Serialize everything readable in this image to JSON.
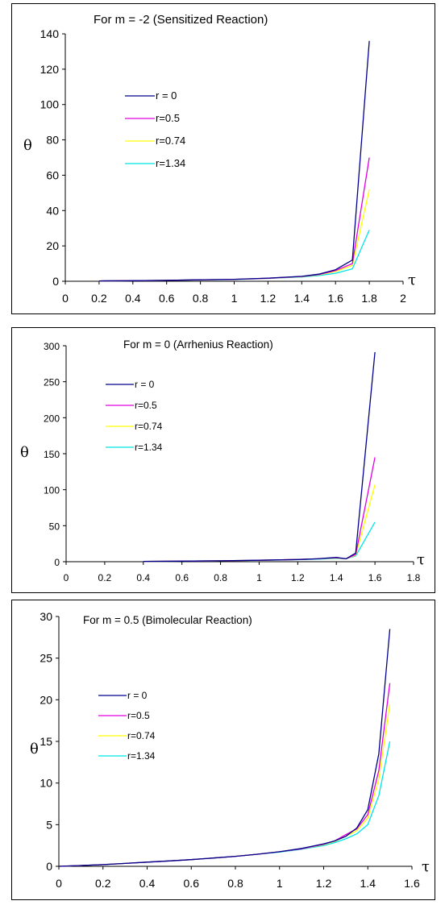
{
  "chart_data": [
    {
      "type": "line",
      "title": "For m = -2 (Sensitized Reaction)",
      "xlabel": "τ",
      "ylabel": "θ",
      "xlim": [
        0,
        2
      ],
      "ylim": [
        0,
        140
      ],
      "xticks": [
        "0",
        "0.2",
        "0.4",
        "0.6",
        "0.8",
        "1",
        "1.2",
        "1.4",
        "1.6",
        "1.8",
        "2"
      ],
      "yticks": [
        "0",
        "20",
        "40",
        "60",
        "80",
        "100",
        "120",
        "140"
      ],
      "grid": false,
      "legend_position": "upper-left",
      "series": [
        {
          "name": "r = 0",
          "color": "#00008B",
          "x": [
            0.2,
            0.4,
            0.6,
            0.8,
            1.0,
            1.2,
            1.4,
            1.5,
            1.6,
            1.7,
            1.8
          ],
          "y": [
            0.2,
            0.3,
            0.5,
            0.8,
            1.1,
            1.8,
            2.8,
            4.0,
            6.5,
            12,
            136
          ]
        },
        {
          "name": "r=0.5",
          "color": "#E000E0",
          "x": [
            0.2,
            0.4,
            0.6,
            0.8,
            1.0,
            1.2,
            1.4,
            1.5,
            1.6,
            1.7,
            1.8
          ],
          "y": [
            0.2,
            0.3,
            0.5,
            0.8,
            1.1,
            1.7,
            2.7,
            3.8,
            6.0,
            10,
            70
          ]
        },
        {
          "name": "r=0.74",
          "color": "#FFFF00",
          "x": [
            0.2,
            0.4,
            0.6,
            0.8,
            1.0,
            1.2,
            1.4,
            1.5,
            1.6,
            1.7,
            1.8
          ],
          "y": [
            0.2,
            0.3,
            0.5,
            0.8,
            1.1,
            1.7,
            2.6,
            3.6,
            5.5,
            9,
            52
          ]
        },
        {
          "name": "r=1.34",
          "color": "#00E5E5",
          "x": [
            0.2,
            0.4,
            0.6,
            0.8,
            1.0,
            1.2,
            1.4,
            1.5,
            1.6,
            1.7,
            1.8
          ],
          "y": [
            0.2,
            0.3,
            0.5,
            0.8,
            1.0,
            1.6,
            2.4,
            3.2,
            4.5,
            7,
            29
          ]
        }
      ]
    },
    {
      "type": "line",
      "title": "For m = 0 (Arrhenius Reaction)",
      "xlabel": "τ",
      "ylabel": "θ",
      "xlim": [
        0,
        1.8
      ],
      "ylim": [
        0,
        300
      ],
      "xticks": [
        "0",
        "0.2",
        "0.4",
        "0.6",
        "0.8",
        "1",
        "1.2",
        "1.4",
        "1.6",
        "1.8"
      ],
      "yticks": [
        "0",
        "50",
        "100",
        "150",
        "200",
        "250",
        "300"
      ],
      "grid": false,
      "legend_position": "upper-left",
      "series": [
        {
          "name": "r = 0",
          "color": "#00008B",
          "x": [
            0.4,
            0.6,
            0.8,
            1.0,
            1.2,
            1.3,
            1.4,
            1.45,
            1.5,
            1.6
          ],
          "y": [
            0.5,
            0.8,
            1.2,
            2.0,
            3.0,
            4.0,
            6.0,
            4.0,
            12,
            291
          ]
        },
        {
          "name": "r=0.5",
          "color": "#E000E0",
          "x": [
            0.4,
            0.6,
            0.8,
            1.0,
            1.2,
            1.3,
            1.4,
            1.45,
            1.5,
            1.6
          ],
          "y": [
            0.5,
            0.8,
            1.2,
            2.0,
            3.0,
            4.0,
            5.5,
            4.0,
            10,
            145
          ]
        },
        {
          "name": "r=0.74",
          "color": "#FFFF00",
          "x": [
            0.4,
            0.6,
            0.8,
            1.0,
            1.2,
            1.3,
            1.4,
            1.45,
            1.5,
            1.6
          ],
          "y": [
            0.5,
            0.8,
            1.2,
            2.0,
            3.0,
            4.0,
            5.0,
            4.0,
            9,
            107
          ]
        },
        {
          "name": "r=1.34",
          "color": "#00E5E5",
          "x": [
            0.4,
            0.6,
            0.8,
            1.0,
            1.2,
            1.3,
            1.4,
            1.45,
            1.5,
            1.6
          ],
          "y": [
            0.5,
            0.8,
            1.2,
            1.8,
            2.8,
            3.5,
            4.5,
            4.0,
            8,
            55
          ]
        }
      ]
    },
    {
      "type": "line",
      "title": "For m = 0.5 (Bimolecular Reaction)",
      "xlabel": "τ",
      "ylabel": "θ",
      "xlim": [
        0,
        1.6
      ],
      "ylim": [
        0,
        30
      ],
      "xticks": [
        "0",
        "0.2",
        "0.4",
        "0.6",
        "0.8",
        "1",
        "1.2",
        "1.4",
        "1.6"
      ],
      "yticks": [
        "0",
        "5",
        "10",
        "15",
        "20",
        "25",
        "30"
      ],
      "grid": false,
      "legend_position": "upper-left",
      "series": [
        {
          "name": "r = 0",
          "color": "#00008B",
          "x": [
            0,
            0.1,
            0.2,
            0.3,
            0.4,
            0.5,
            0.6,
            0.7,
            0.8,
            0.9,
            1.0,
            1.1,
            1.2,
            1.25,
            1.3,
            1.35,
            1.4,
            1.45,
            1.5
          ],
          "y": [
            0,
            0.1,
            0.2,
            0.35,
            0.5,
            0.65,
            0.8,
            1.0,
            1.2,
            1.45,
            1.75,
            2.15,
            2.7,
            3.05,
            3.6,
            4.6,
            6.8,
            13.5,
            28.5
          ]
        },
        {
          "name": "r=0.5",
          "color": "#E000E0",
          "x": [
            0,
            0.1,
            0.2,
            0.3,
            0.4,
            0.5,
            0.6,
            0.7,
            0.8,
            0.9,
            1.0,
            1.1,
            1.2,
            1.25,
            1.3,
            1.35,
            1.4,
            1.45,
            1.5
          ],
          "y": [
            0,
            0.1,
            0.2,
            0.35,
            0.5,
            0.65,
            0.8,
            1.0,
            1.2,
            1.45,
            1.75,
            2.1,
            2.65,
            3.05,
            3.8,
            4.5,
            6.2,
            11.5,
            22
          ]
        },
        {
          "name": "r=0.74",
          "color": "#FFFF00",
          "x": [
            0,
            0.1,
            0.2,
            0.3,
            0.4,
            0.5,
            0.6,
            0.7,
            0.8,
            0.9,
            1.0,
            1.1,
            1.2,
            1.25,
            1.3,
            1.35,
            1.4,
            1.45,
            1.5
          ],
          "y": [
            0,
            0.1,
            0.2,
            0.35,
            0.5,
            0.65,
            0.8,
            1.0,
            1.2,
            1.45,
            1.75,
            2.1,
            2.6,
            3.0,
            3.6,
            4.3,
            5.8,
            10.5,
            19.5
          ]
        },
        {
          "name": "r=1.34",
          "color": "#00E5E5",
          "x": [
            0,
            0.1,
            0.2,
            0.3,
            0.4,
            0.5,
            0.6,
            0.7,
            0.8,
            0.9,
            1.0,
            1.1,
            1.2,
            1.25,
            1.3,
            1.35,
            1.4,
            1.45,
            1.5
          ],
          "y": [
            0,
            0.1,
            0.2,
            0.35,
            0.5,
            0.65,
            0.8,
            1.0,
            1.2,
            1.45,
            1.7,
            2.05,
            2.5,
            2.85,
            3.3,
            3.9,
            5.0,
            8.5,
            15
          ]
        }
      ]
    }
  ]
}
